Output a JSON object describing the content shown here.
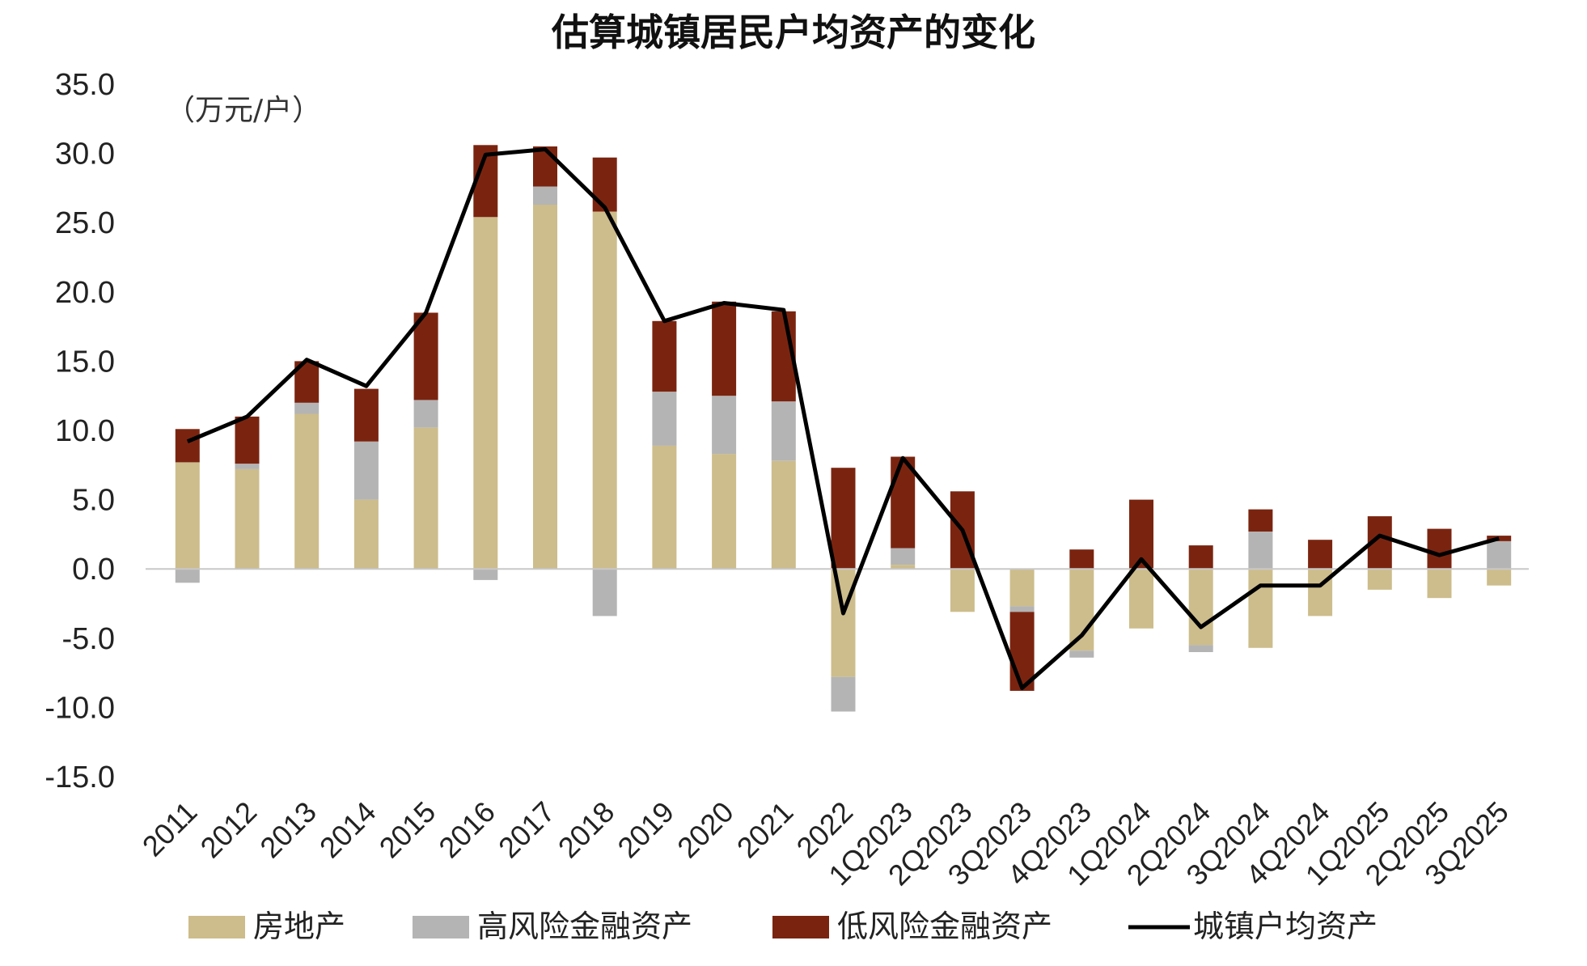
{
  "chart_data": {
    "type": "bar",
    "title": "估算城镇居民户均资产的变化",
    "unit_label": "（万元/户）",
    "ylim": [
      -15,
      35
    ],
    "yticks": [
      "35.0",
      "30.0",
      "25.0",
      "20.0",
      "15.0",
      "10.0",
      "5.0",
      "0.0",
      "-5.0",
      "-10.0",
      "-15.0"
    ],
    "ytick_values": [
      35,
      30,
      25,
      20,
      15,
      10,
      5,
      0,
      -5,
      -10,
      -15
    ],
    "grid": false,
    "legend_position": "bottom",
    "stacked": true,
    "categories": [
      "2011",
      "2012",
      "2013",
      "2014",
      "2015",
      "2016",
      "2017",
      "2018",
      "2019",
      "2020",
      "2021",
      "2022",
      "1Q2023",
      "2Q2023",
      "3Q2023",
      "4Q2023",
      "1Q2024",
      "2Q2024",
      "3Q2024",
      "4Q2024",
      "1Q2025",
      "2Q2025",
      "3Q2025"
    ],
    "series": [
      {
        "name": "房地产",
        "kind": "bar",
        "color": "#cdbd8c",
        "values": [
          7.7,
          7.2,
          11.2,
          5.0,
          10.2,
          25.4,
          26.3,
          25.8,
          8.9,
          8.3,
          7.8,
          -7.8,
          0.3,
          -3.1,
          -2.7,
          -5.9,
          -4.3,
          -5.5,
          -5.7,
          -3.4,
          -1.5,
          -2.1,
          -1.2
        ]
      },
      {
        "name": "高风险金融资产",
        "kind": "bar",
        "color": "#b4b4b4",
        "values": [
          -1.0,
          0.4,
          0.8,
          4.2,
          2.0,
          -0.8,
          1.3,
          -3.4,
          3.9,
          4.2,
          4.3,
          -2.5,
          1.2,
          0.0,
          -0.4,
          -0.5,
          0.0,
          -0.5,
          2.7,
          0.0,
          0.0,
          0.0,
          2.0
        ]
      },
      {
        "name": "低风险金融资产",
        "kind": "bar",
        "color": "#7a2410",
        "values": [
          2.4,
          3.4,
          3.0,
          3.8,
          6.3,
          5.2,
          2.9,
          3.9,
          5.1,
          6.8,
          6.5,
          7.3,
          6.6,
          5.6,
          -5.7,
          1.4,
          5.0,
          1.7,
          1.6,
          2.1,
          3.8,
          2.9,
          0.4
        ]
      },
      {
        "name": "城镇户均资产",
        "kind": "line",
        "color": "#000000",
        "values": [
          9.2,
          11.0,
          15.1,
          13.2,
          18.5,
          29.9,
          30.3,
          26.1,
          17.9,
          19.2,
          18.7,
          -3.2,
          8.0,
          2.8,
          -8.6,
          -4.8,
          0.7,
          -4.2,
          -1.2,
          -1.2,
          2.4,
          1.0,
          2.2
        ]
      }
    ]
  }
}
